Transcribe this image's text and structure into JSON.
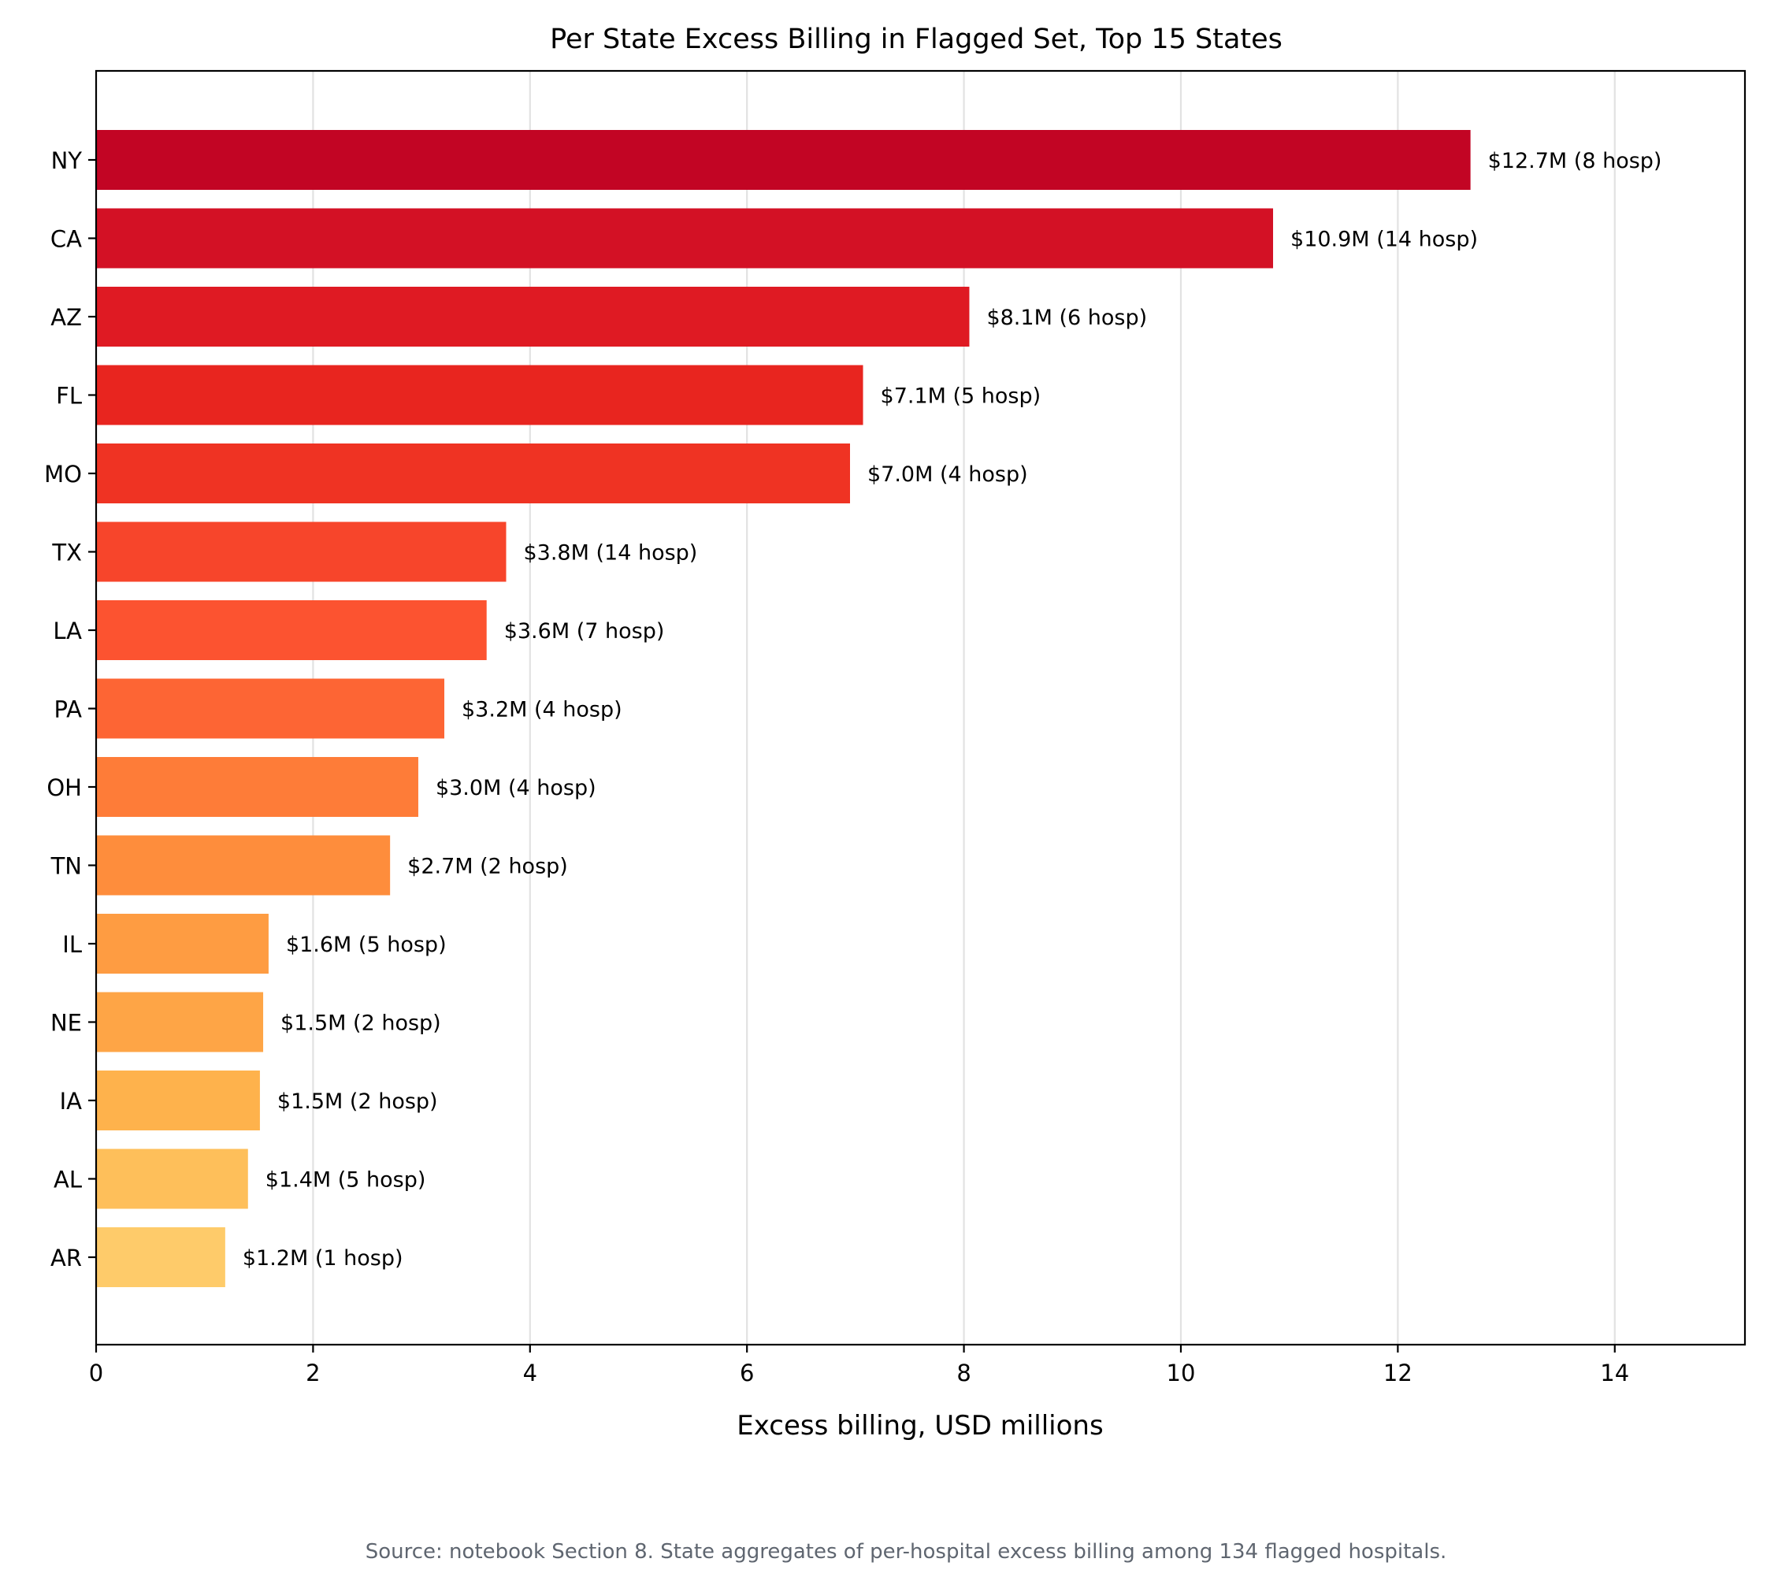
{
  "chart_data": {
    "type": "bar",
    "orientation": "horizontal",
    "title": "Per State Excess Billing in Flagged Set, Top 15 States",
    "xlabel": "Excess billing, USD millions",
    "ylabel": "",
    "xlim": [
      0,
      15.2
    ],
    "xticks": [
      0,
      2,
      4,
      6,
      8,
      10,
      12,
      14
    ],
    "grid": "vertical",
    "categories": [
      "NY",
      "CA",
      "AZ",
      "FL",
      "MO",
      "TX",
      "LA",
      "PA",
      "OH",
      "TN",
      "IL",
      "NE",
      "IA",
      "AL",
      "AR"
    ],
    "values": [
      12.67,
      10.85,
      8.05,
      7.07,
      6.95,
      3.78,
      3.6,
      3.21,
      2.97,
      2.71,
      1.59,
      1.54,
      1.51,
      1.4,
      1.19
    ],
    "data_labels": [
      "$12.7M (8 hosp)",
      "$10.9M (14 hosp)",
      "$8.1M (6 hosp)",
      "$7.1M (5 hosp)",
      "$7.0M (4 hosp)",
      "$3.8M (14 hosp)",
      "$3.6M (7 hosp)",
      "$3.2M (4 hosp)",
      "$3.0M (4 hosp)",
      "$2.7M (2 hosp)",
      "$1.6M (5 hosp)",
      "$1.5M (2 hosp)",
      "$1.5M (2 hosp)",
      "$1.4M (5 hosp)",
      "$1.2M (1 hosp)"
    ],
    "colors": [
      "#c20524",
      "#d31125",
      "#df1a23",
      "#e8251f",
      "#ef3323",
      "#f7452b",
      "#fc5330",
      "#fd6534",
      "#fe7c38",
      "#fe8d3c",
      "#fe9c42",
      "#fea546",
      "#feb24c",
      "#febf5a",
      "#fecb6a"
    ],
    "source": "Source: notebook Section 8. State aggregates of per-hospital excess billing among 134 flagged hospitals."
  }
}
